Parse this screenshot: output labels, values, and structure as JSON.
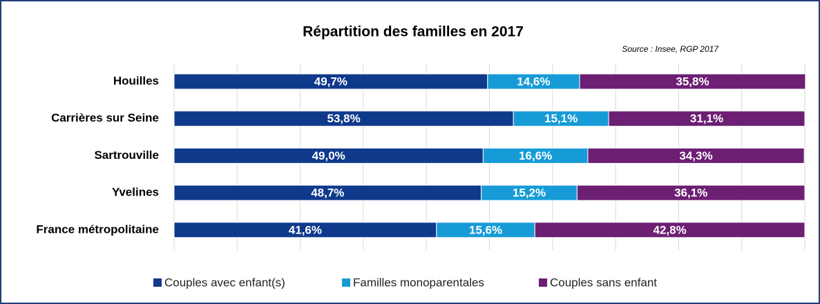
{
  "chart_data": {
    "type": "stacked_bar_horizontal",
    "title": "Répartition des familles en 2017",
    "source": "Source : Insee, RGP 2017",
    "categories": [
      "Houilles",
      "Carrières sur Seine",
      "Sartrouville",
      "Yvelines",
      "France métropolitaine"
    ],
    "series": [
      {
        "name": "Couples avec enfant(s)",
        "color": "#0f3a8c",
        "values": [
          49.7,
          53.8,
          49.0,
          48.7,
          41.6
        ],
        "value_labels": [
          "49,7%",
          "53,8%",
          "49,0%",
          "48,7%",
          "41,6%"
        ]
      },
      {
        "name": "Familles monoparentales",
        "color": "#179bd7",
        "values": [
          14.6,
          15.1,
          16.6,
          15.2,
          15.6
        ],
        "value_labels": [
          "14,6%",
          "15,1%",
          "16,6%",
          "15,2%",
          "15,6%"
        ]
      },
      {
        "name": "Couples sans enfant",
        "color": "#6c1f73",
        "values": [
          35.8,
          31.1,
          34.3,
          36.1,
          42.8
        ],
        "value_labels": [
          "35,8%",
          "31,1%",
          "34,3%",
          "36,1%",
          "42,8%"
        ]
      }
    ],
    "xlim": [
      0,
      100
    ],
    "xticks": [
      0,
      10,
      20,
      30,
      40,
      50,
      60,
      70,
      80,
      90,
      100
    ],
    "grid": true,
    "legend": "bottom"
  }
}
